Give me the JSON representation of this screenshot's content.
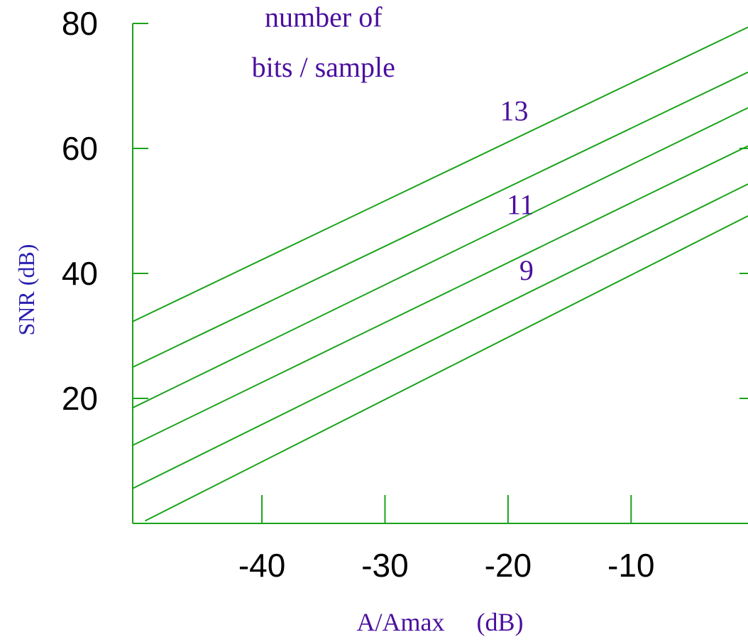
{
  "chart_data": {
    "type": "line",
    "title": "",
    "xlabel": "A/Amax     (dB)",
    "ylabel": "SNR (dB)",
    "xlim": [
      -50.5,
      -0.5
    ],
    "ylim": [
      0,
      80
    ],
    "x_ticks": [
      {
        "value": -40,
        "label": "-40"
      },
      {
        "value": -30,
        "label": "-30"
      },
      {
        "value": -20,
        "label": "-20"
      },
      {
        "value": -10,
        "label": "-10"
      }
    ],
    "y_ticks": [
      {
        "value": 20,
        "label": "20"
      },
      {
        "value": 40,
        "label": "40"
      },
      {
        "value": 60,
        "label": "60"
      },
      {
        "value": 80,
        "label": "80"
      }
    ],
    "series": [
      {
        "x": [
          -50.5,
          -0.5
        ],
        "y": [
          32.3,
          79.4
        ]
      },
      {
        "x": [
          -50.5,
          -0.5
        ],
        "y": [
          25.0,
          72.2
        ]
      },
      {
        "x": [
          -50.5,
          -0.5
        ],
        "y": [
          18.5,
          66.5
        ]
      },
      {
        "x": [
          -50.5,
          -0.5
        ],
        "y": [
          12.5,
          60.4
        ]
      },
      {
        "x": [
          -50.5,
          -0.5
        ],
        "y": [
          5.6,
          54.3
        ]
      },
      {
        "x": [
          -49.5,
          -0.5
        ],
        "y": [
          0.4,
          49.2
        ]
      }
    ],
    "annotations": [
      {
        "text": "number of",
        "x": -35.0,
        "y": 79.5
      },
      {
        "text": "bits / sample",
        "x": -35.0,
        "y": 71.5
      },
      {
        "text": "13",
        "x": -19.5,
        "y": 64.5
      },
      {
        "text": "11",
        "x": -19.0,
        "y": 49.5
      },
      {
        "text": "9",
        "x": -18.5,
        "y": 39.0
      }
    ],
    "colors": {
      "lines": "#1aa31a",
      "axes": "#1aa31a",
      "annotations": "#4b0f9e",
      "axis_titles": "#2a20b0",
      "tick_labels": "#000000"
    },
    "grid": false,
    "legend": "none"
  }
}
